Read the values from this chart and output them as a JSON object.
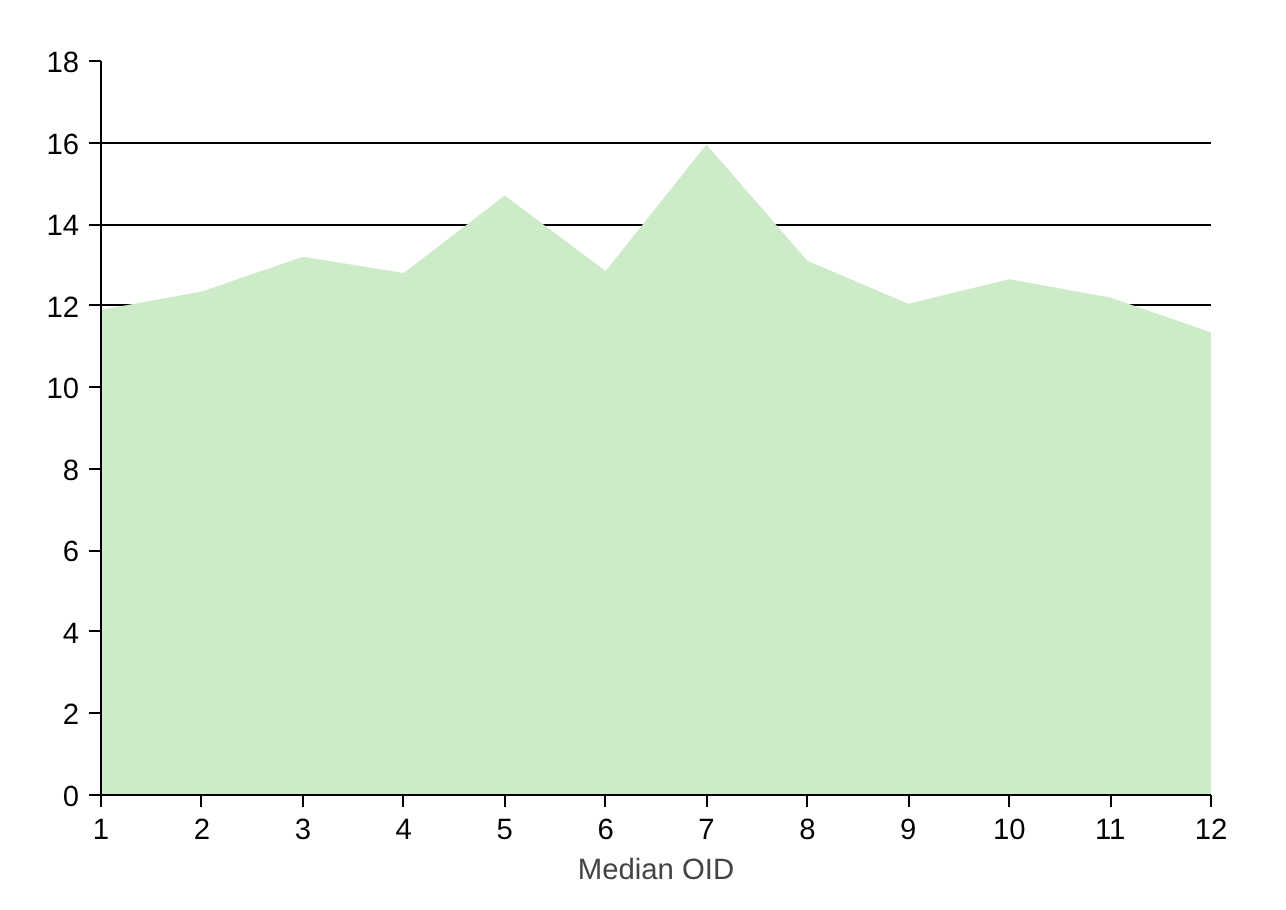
{
  "chart_data": {
    "type": "area",
    "xlabel": "Median OID",
    "x": [
      1,
      2,
      3,
      4,
      5,
      6,
      7,
      8,
      9,
      10,
      11,
      12
    ],
    "series": [
      {
        "color": "#cdeac9",
        "values": [
          11.9,
          12.35,
          13.2,
          12.8,
          14.7,
          12.85,
          15.95,
          13.1,
          12.05,
          12.65,
          12.2,
          11.35
        ]
      }
    ],
    "xlim": [
      1,
      12
    ],
    "ylim": [
      0,
      18
    ],
    "xticks": [
      1,
      2,
      3,
      4,
      5,
      6,
      7,
      8,
      9,
      10,
      11,
      12
    ],
    "yticks": [
      0,
      2,
      4,
      6,
      8,
      10,
      12,
      14,
      16,
      18
    ],
    "grid": "y"
  }
}
